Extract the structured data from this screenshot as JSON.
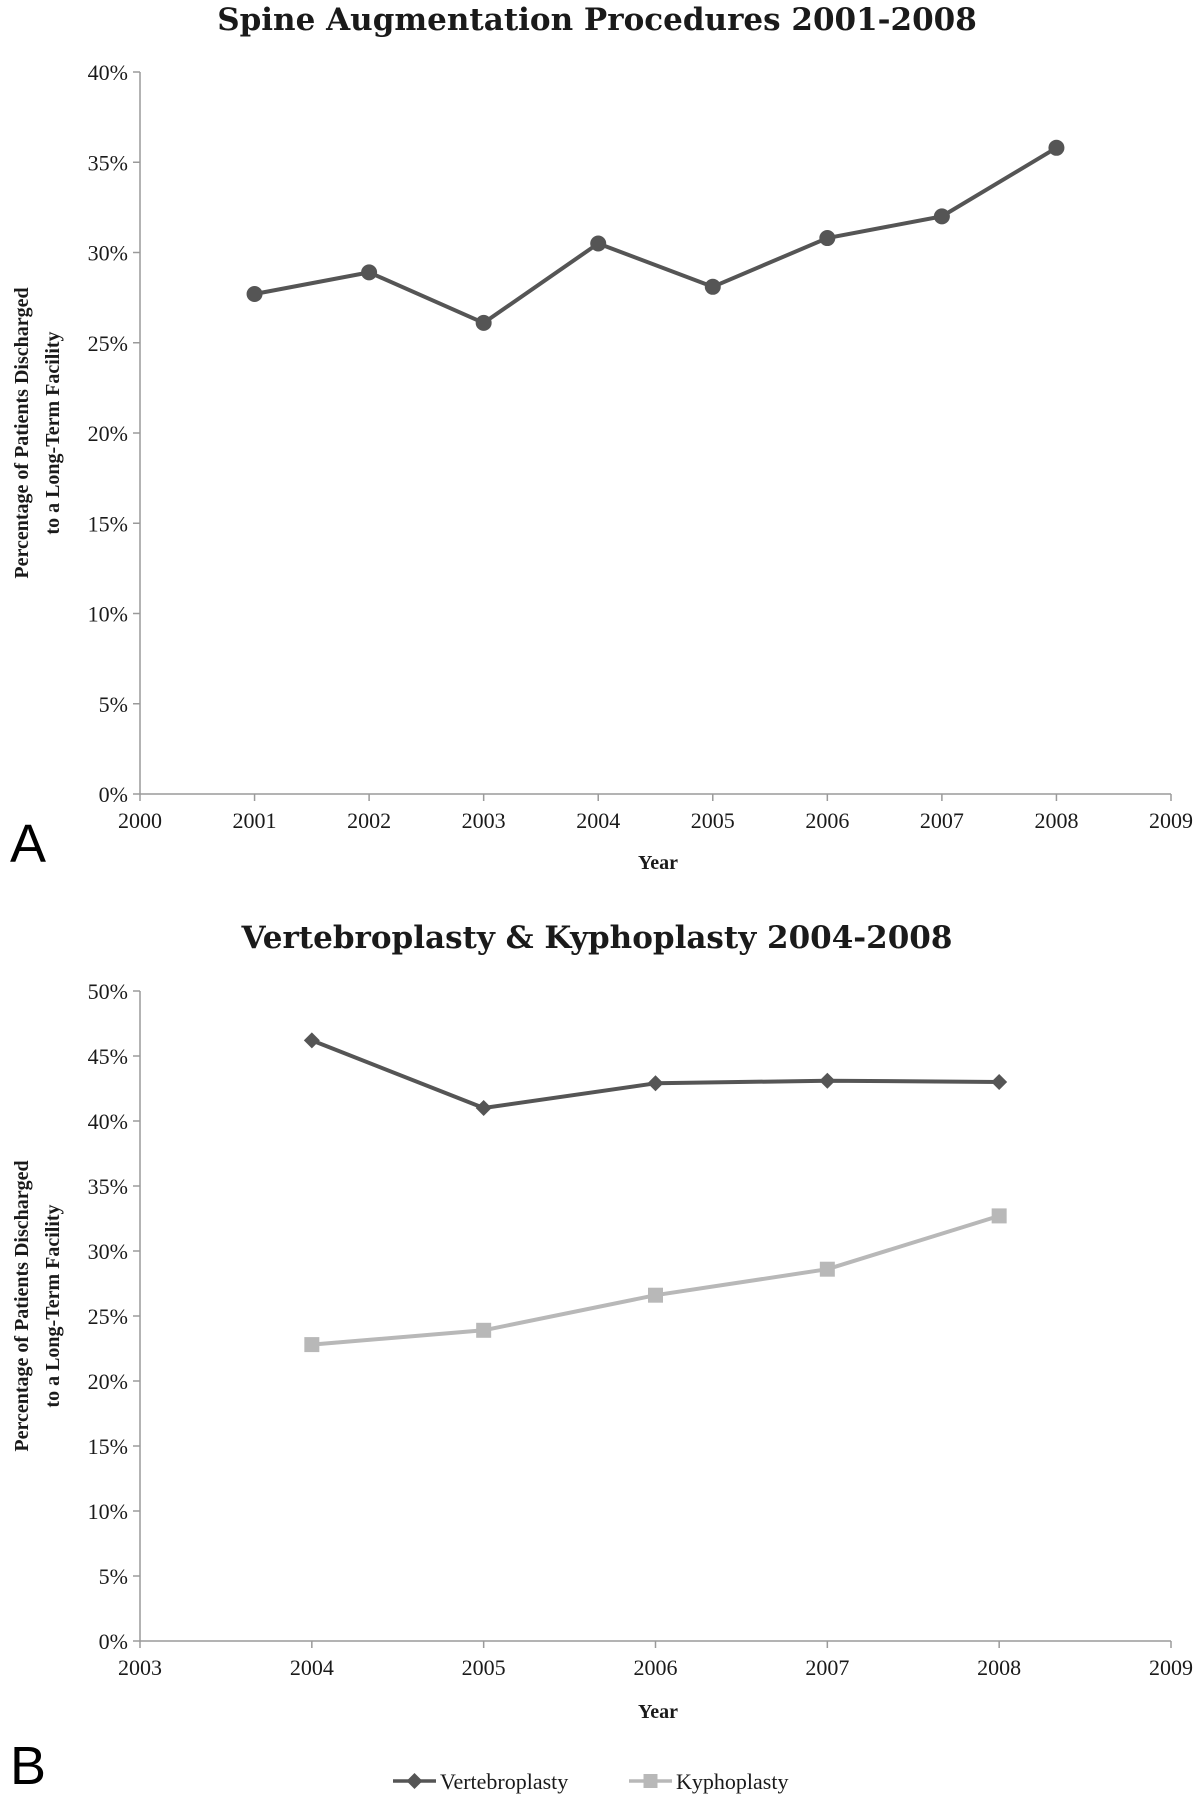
{
  "figure": {
    "panels": [
      {
        "letter": "A",
        "chart_index": 0
      },
      {
        "letter": "B",
        "chart_index": 1
      }
    ],
    "legend": {
      "items": [
        {
          "label": "Vertebroplasty",
          "color": "#555555",
          "marker": "diamond"
        },
        {
          "label": "Kyphoplasty",
          "color": "#b8b8b8",
          "marker": "square"
        }
      ]
    }
  },
  "chart_data": [
    {
      "type": "line",
      "title": "Spine Augmentation Procedures 2001-2008",
      "xlabel": "Year",
      "ylabel_line1": "Percentage of Patients Discharged",
      "ylabel_line2": "to a Long-Term Facility",
      "xlim": [
        2000,
        2009
      ],
      "ylim": [
        0,
        40
      ],
      "x_ticks": [
        "2000",
        "2001",
        "2002",
        "2003",
        "2004",
        "2005",
        "2006",
        "2007",
        "2008",
        "2009"
      ],
      "y_ticks": [
        "0%",
        "5%",
        "10%",
        "15%",
        "20%",
        "25%",
        "30%",
        "35%",
        "40%"
      ],
      "grid": false,
      "series": [
        {
          "color": "#555555",
          "marker": "circle",
          "x": [
            2001,
            2002,
            2003,
            2004,
            2005,
            2006,
            2007,
            2008
          ],
          "values": [
            27.7,
            28.9,
            26.1,
            30.5,
            28.1,
            30.8,
            32.0,
            35.8
          ]
        }
      ]
    },
    {
      "type": "line",
      "title": "Vertebroplasty & Kyphoplasty 2004-2008",
      "xlabel": "Year",
      "ylabel_line1": "Percentage of Patients Discharged",
      "ylabel_line2": "to a Long-Term Facility",
      "xlim": [
        2003,
        2009
      ],
      "ylim": [
        0,
        50
      ],
      "x_ticks": [
        "2003",
        "2004",
        "2005",
        "2006",
        "2007",
        "2008",
        "2009"
      ],
      "y_ticks": [
        "0%",
        "5%",
        "10%",
        "15%",
        "20%",
        "25%",
        "30%",
        "35%",
        "40%",
        "45%",
        "50%"
      ],
      "grid": false,
      "legend_position": "bottom",
      "series": [
        {
          "name": "Vertebroplasty",
          "color": "#555555",
          "marker": "diamond",
          "x": [
            2004,
            2005,
            2006,
            2007,
            2008
          ],
          "values": [
            46.2,
            41.0,
            42.9,
            43.1,
            43.0
          ]
        },
        {
          "name": "Kyphoplasty",
          "color": "#b8b8b8",
          "marker": "square",
          "x": [
            2004,
            2005,
            2006,
            2007,
            2008
          ],
          "values": [
            22.8,
            23.9,
            26.6,
            28.6,
            32.7
          ]
        }
      ]
    }
  ]
}
